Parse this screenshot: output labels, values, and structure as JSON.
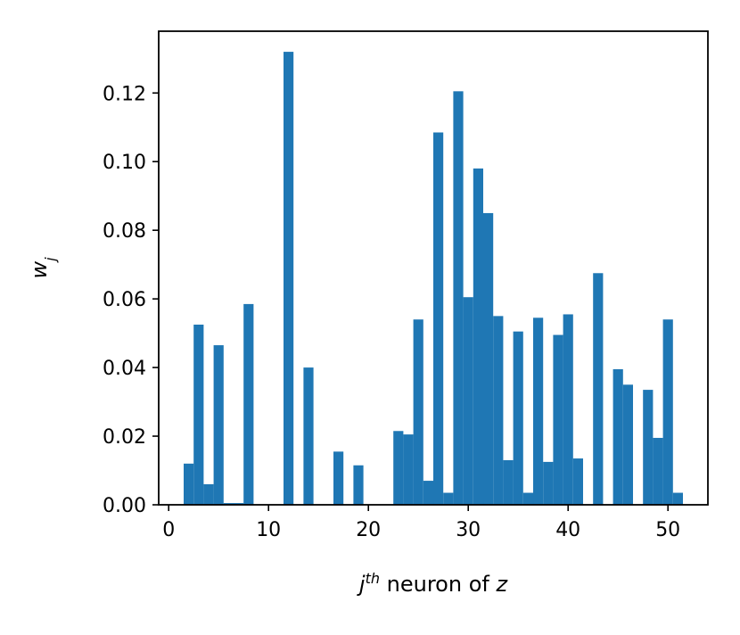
{
  "chart_data": {
    "type": "bar",
    "title": "",
    "xlabel": {
      "base": "j",
      "sup": "th",
      "rest": " neuron of ",
      "var": "z"
    },
    "ylabel": {
      "base": "w",
      "sub": "j"
    },
    "xlim": [
      -1,
      54
    ],
    "ylim": [
      0,
      0.138
    ],
    "xticks": [
      0,
      10,
      20,
      30,
      40,
      50
    ],
    "yticks": [
      0.0,
      0.02,
      0.04,
      0.06,
      0.08,
      0.1,
      0.12
    ],
    "ytick_labels": [
      "0.00",
      "0.02",
      "0.04",
      "0.06",
      "0.08",
      "0.10",
      "0.12"
    ],
    "bar_color": "#1f77b4",
    "bar_width": 1,
    "x": [
      0,
      1,
      2,
      3,
      4,
      5,
      6,
      7,
      8,
      9,
      10,
      11,
      12,
      13,
      14,
      15,
      16,
      17,
      18,
      19,
      20,
      21,
      22,
      23,
      24,
      25,
      26,
      27,
      28,
      29,
      30,
      31,
      32,
      33,
      34,
      35,
      36,
      37,
      38,
      39,
      40,
      41,
      42,
      43,
      44,
      45,
      46,
      47,
      48,
      49,
      50,
      51
    ],
    "values": [
      0,
      0,
      0.012,
      0.0525,
      0.006,
      0.0465,
      0.0005,
      0.0005,
      0.0585,
      0,
      0,
      0,
      0.132,
      0,
      0.04,
      0,
      0,
      0.0155,
      0,
      0.0115,
      0,
      0,
      0,
      0.0215,
      0.0205,
      0.054,
      0.007,
      0.1085,
      0.0035,
      0.1205,
      0.0605,
      0.098,
      0.085,
      0.055,
      0.013,
      0.0505,
      0.0035,
      0.0545,
      0.0125,
      0.0495,
      0.0555,
      0.0135,
      0,
      0.0675,
      0,
      0.0395,
      0.035,
      0,
      0.0335,
      0.0195,
      0.054,
      0.0035
    ]
  }
}
